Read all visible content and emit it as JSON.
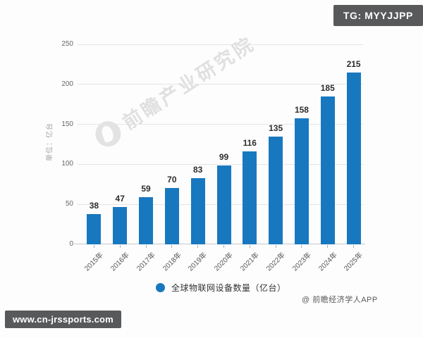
{
  "overlays": {
    "telegram_badge": "TG: MYYJJPP",
    "site_badge": "www.cn-jrssports.com"
  },
  "watermark": {
    "brand_text": "前瞻产业研究院"
  },
  "chart_data": {
    "type": "bar",
    "title": "",
    "categories": [
      "2015年",
      "2016年",
      "2017年",
      "2018年",
      "2019年",
      "2020年",
      "2021年",
      "2022年",
      "2023年",
      "2024年",
      "2025年"
    ],
    "values": [
      38,
      47,
      59,
      70,
      83,
      99,
      116,
      135,
      158,
      185,
      215
    ],
    "value_labels_shown": true,
    "xlabel": "",
    "ylabel": "单位：亿台",
    "ylim": [
      0,
      250
    ],
    "yticks": [
      0,
      50,
      100,
      150,
      200,
      250
    ],
    "grid": true,
    "bar_color": "#1878bf",
    "legend": [
      {
        "label": "全球物联网设备数量（亿台）",
        "color": "#1878bf"
      }
    ],
    "legend_position": "bottom-center",
    "source": "@ 前瞻经济学人APP"
  }
}
